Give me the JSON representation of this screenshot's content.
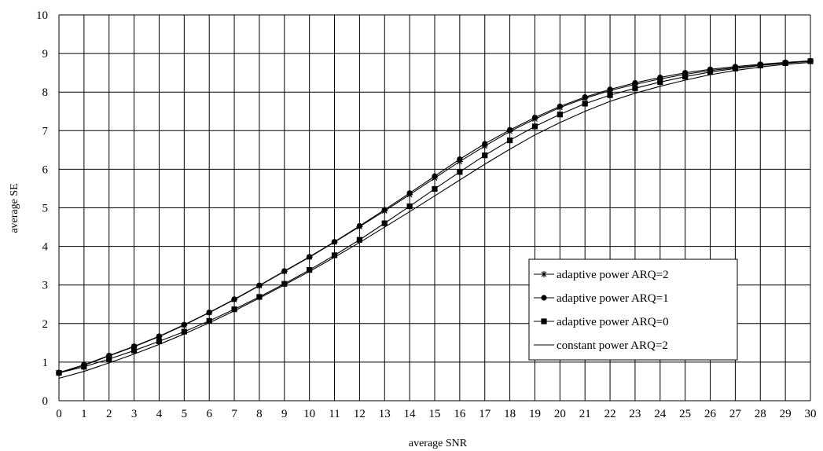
{
  "chart_data": {
    "type": "line",
    "xlabel": "average SNR",
    "ylabel": "average SE",
    "xlim": [
      0,
      30
    ],
    "ylim": [
      0,
      10
    ],
    "xticks": [
      0,
      1,
      2,
      3,
      4,
      5,
      6,
      7,
      8,
      9,
      10,
      11,
      12,
      13,
      14,
      15,
      16,
      17,
      18,
      19,
      20,
      21,
      22,
      23,
      24,
      25,
      26,
      27,
      28,
      29,
      30
    ],
    "yticks": [
      0,
      1,
      2,
      3,
      4,
      5,
      6,
      7,
      8,
      9,
      10
    ],
    "grid": true,
    "legend_position": "lower-right",
    "x": [
      0,
      1,
      2,
      3,
      4,
      5,
      6,
      7,
      8,
      9,
      10,
      11,
      12,
      13,
      14,
      15,
      16,
      17,
      18,
      19,
      20,
      21,
      22,
      23,
      24,
      25,
      26,
      27,
      28,
      29,
      30
    ],
    "series": [
      {
        "name": "adaptive power ARQ=2",
        "marker": "star",
        "values": [
          0.72,
          0.92,
          1.16,
          1.4,
          1.66,
          1.96,
          2.28,
          2.62,
          2.98,
          3.35,
          3.72,
          4.11,
          4.51,
          4.92,
          5.34,
          5.77,
          6.2,
          6.6,
          6.98,
          7.3,
          7.6,
          7.84,
          8.04,
          8.2,
          8.34,
          8.46,
          8.56,
          8.63,
          8.7,
          8.75,
          8.8
        ]
      },
      {
        "name": "adaptive power ARQ=1",
        "marker": "circle",
        "values": [
          0.73,
          0.93,
          1.17,
          1.41,
          1.67,
          1.97,
          2.29,
          2.63,
          2.99,
          3.36,
          3.73,
          4.12,
          4.53,
          4.95,
          5.38,
          5.82,
          6.26,
          6.66,
          7.02,
          7.34,
          7.63,
          7.87,
          8.07,
          8.24,
          8.38,
          8.5,
          8.59,
          8.66,
          8.72,
          8.77,
          8.81
        ]
      },
      {
        "name": "adaptive power ARQ=0",
        "marker": "square",
        "values": [
          0.72,
          0.88,
          1.08,
          1.3,
          1.54,
          1.79,
          2.07,
          2.37,
          2.69,
          3.03,
          3.39,
          3.77,
          4.17,
          4.6,
          5.04,
          5.49,
          5.93,
          6.36,
          6.75,
          7.11,
          7.42,
          7.7,
          7.92,
          8.1,
          8.26,
          8.4,
          8.52,
          8.61,
          8.69,
          8.75,
          8.8
        ]
      },
      {
        "name": "constant power ARQ=2",
        "marker": "none",
        "values": [
          0.58,
          0.76,
          0.98,
          1.21,
          1.46,
          1.73,
          2.02,
          2.33,
          2.66,
          3.0,
          3.35,
          3.72,
          4.1,
          4.5,
          4.9,
          5.31,
          5.72,
          6.13,
          6.52,
          6.89,
          7.21,
          7.5,
          7.76,
          7.97,
          8.15,
          8.31,
          8.45,
          8.56,
          8.65,
          8.72,
          8.77
        ]
      }
    ]
  }
}
